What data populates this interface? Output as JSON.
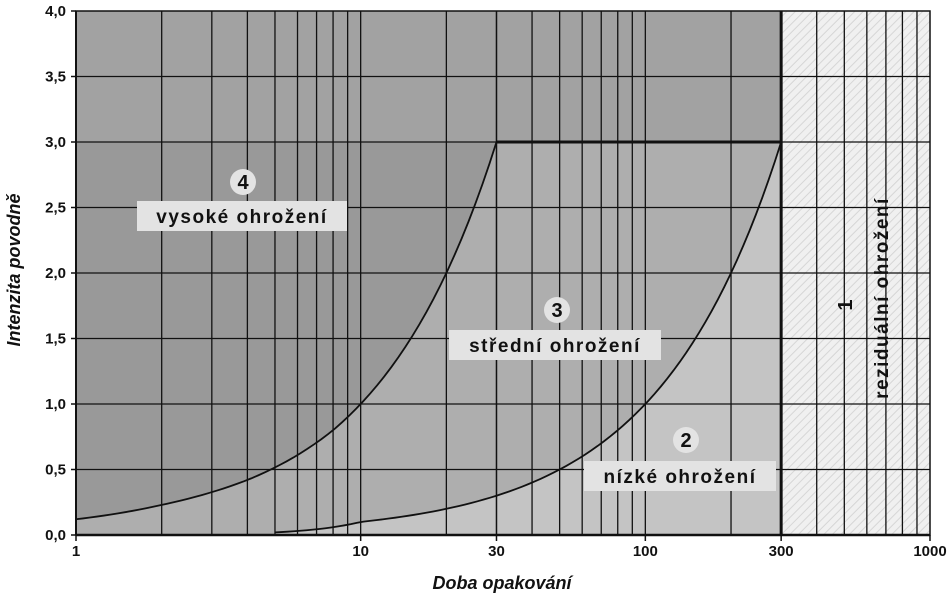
{
  "chart_data": {
    "type": "area",
    "xlabel": "Doba opakování",
    "ylabel": "Intenzita povodně",
    "xscale": "log",
    "xlim": [
      1,
      1000
    ],
    "ylim": [
      0,
      4
    ],
    "x_ticks": [
      "1",
      "10",
      "30",
      "100",
      "300",
      "1000"
    ],
    "y_ticks": [
      "0,0",
      "0,5",
      "1,0",
      "1,5",
      "2,0",
      "2,5",
      "3,0",
      "3,5",
      "4,0"
    ],
    "grid": true,
    "zones": [
      {
        "number": "1",
        "label": "reziduální ohrožení",
        "color": "#f0f0f0"
      },
      {
        "number": "2",
        "label": "nízké ohrožení",
        "color": "#c4c4c4"
      },
      {
        "number": "3",
        "label": "střední ohrožení",
        "color": "#aeaeae"
      },
      {
        "number": "4",
        "label": "vysoké ohrožení",
        "color": "#999999"
      }
    ],
    "boundary_curves": [
      {
        "between": "vysoké ohrožení / střední ohrožení",
        "x": [
          1,
          2,
          4,
          6,
          8,
          10,
          15,
          20,
          25,
          30,
          300
        ],
        "y": [
          0.12,
          0.23,
          0.42,
          0.61,
          0.8,
          1.0,
          1.5,
          2.0,
          2.5,
          3.0,
          3.0
        ]
      },
      {
        "between": "střední ohrožení / nízké ohrožení",
        "x": [
          5,
          10,
          20,
          30,
          50,
          100,
          150,
          200,
          250,
          300
        ],
        "y": [
          0.02,
          0.1,
          0.2,
          0.3,
          0.5,
          1.0,
          1.5,
          2.0,
          2.5,
          3.0
        ]
      }
    ],
    "colors": {
      "high_top_band": "#a2a2a2",
      "grid": "#111111",
      "hatch": "#d6d6d6"
    }
  }
}
